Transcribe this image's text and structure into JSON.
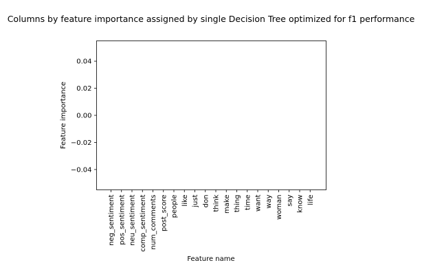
{
  "chart_data": {
    "type": "bar",
    "title": "Columns by feature importance assigned by single Decision Tree optimized for f1 performance",
    "xlabel": "Feature name",
    "ylabel": "Feature importance",
    "categories": [
      "neg_sentiment",
      "pos_sentiment",
      "neu_sentiment",
      "comp_sentiment",
      "num_comments",
      "post_score",
      "people",
      "like",
      "just",
      "don",
      "think",
      "make",
      "thing",
      "time",
      "want",
      "way",
      "woman",
      "say",
      "know",
      "life"
    ],
    "values": [
      0,
      0,
      0,
      0,
      0,
      0,
      0,
      0,
      0,
      0,
      0,
      0,
      0,
      0,
      0,
      0,
      0,
      0,
      0,
      0
    ],
    "ylim": [
      -0.055,
      0.055
    ],
    "yticks": [
      0.04,
      0.02,
      0.0,
      -0.02,
      -0.04
    ],
    "ytick_labels": [
      "0.04",
      "0.02",
      "0.00",
      "−0.02",
      "−0.04"
    ],
    "grid": false,
    "bar_color": "#1f77b4"
  }
}
